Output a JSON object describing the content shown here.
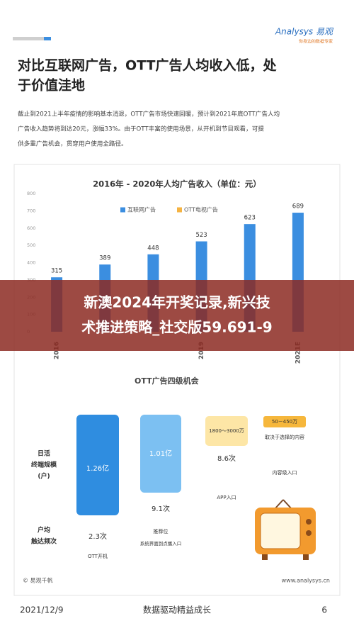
{
  "header": {
    "logo": "Analysys 易观",
    "slogan": "你身边的数据专家"
  },
  "title_lines": [
    "对比互联网广告，OTT广告人均收入低，处",
    "于价值洼地"
  ],
  "paragraph_lines": [
    "截止到2021上半年疫情的影响基本消退，OTT广告市场快速回暖，预计到2021年底OTT广告人均",
    "广告收入趋势将到达20元，涨幅33%。由于OTT丰富的使用场景，从开机到节目观看，可提",
    "供多重广告机会，贯穿用户使用全路径。"
  ],
  "chart_data": {
    "type": "bar",
    "title": "2016年 - 2020年人均广告收入（单位：元）",
    "categories": [
      "2016",
      null,
      null,
      "2019",
      null,
      "2021E"
    ],
    "series": [
      {
        "name": "互联网广告",
        "color": "#3b8ee0",
        "values": [
          315,
          389,
          448,
          523,
          623,
          689
        ]
      },
      {
        "name": "OTT电视广告",
        "color": "#f5b342",
        "values": [
          null,
          null,
          null,
          null,
          null,
          null
        ]
      }
    ],
    "ylim": [
      0,
      800
    ],
    "yticks": [
      0,
      100,
      200,
      300,
      400,
      500,
      600,
      700,
      800
    ]
  },
  "banner": {
    "lines": [
      "新澳2024年开奖记录,新兴技",
      "术推进策略_社交版59.691-9"
    ]
  },
  "ott": {
    "title": "OTT广告四级机会",
    "row_labels": [
      [
        "日活",
        "终端规模",
        "(户)"
      ],
      [
        "户均",
        "触达频次"
      ]
    ],
    "levels": [
      {
        "scale": "1.26亿",
        "frequency": "2.3次",
        "name": "OTT开机"
      },
      {
        "scale": "1.01亿",
        "frequency": "9.1次",
        "name": "推荐位",
        "detail": "系统界面到点播入口"
      },
      {
        "scale": "1800～3000万",
        "frequency": "8.6次",
        "name": "APP入口"
      },
      {
        "scale": "50－450万",
        "frequency": "取决于选择的内容",
        "name": "内容级入口"
      }
    ]
  },
  "source": {
    "left": "© 易观千帆",
    "right": "www.analysys.cn"
  },
  "footer": {
    "date": "2021/12/9",
    "motto": "数据驱动精益成长",
    "page": "6"
  }
}
